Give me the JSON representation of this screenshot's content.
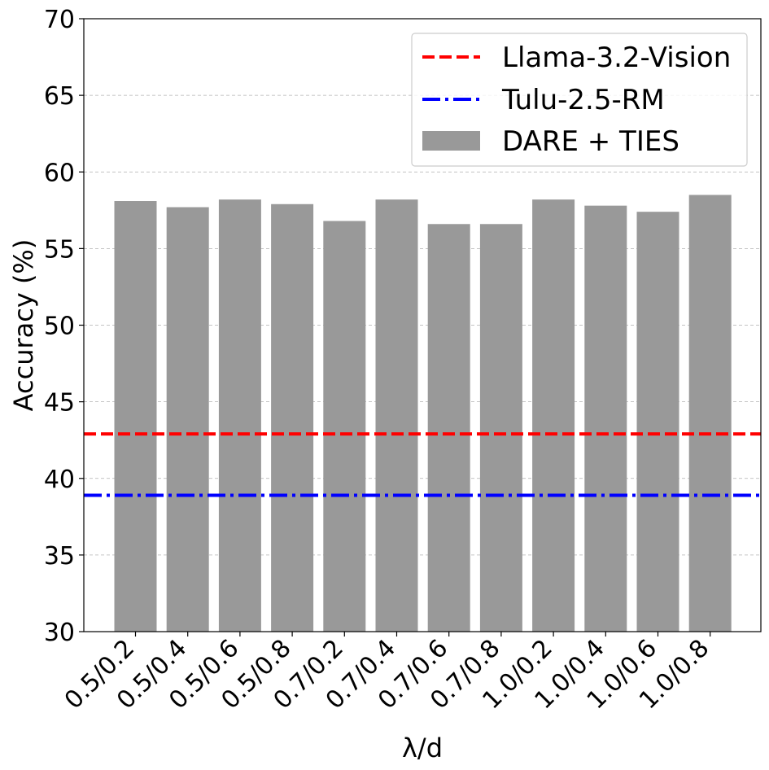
{
  "chart_data": {
    "type": "bar",
    "title": "",
    "xlabel": "λ/d",
    "ylabel": "Accuracy (%)",
    "ylim": [
      30,
      70
    ],
    "yticks": [
      30,
      35,
      40,
      45,
      50,
      55,
      60,
      65,
      70
    ],
    "grid": true,
    "legend_placement": "top-right",
    "categories": [
      "0.5/0.2",
      "0.5/0.4",
      "0.5/0.6",
      "0.5/0.8",
      "0.7/0.2",
      "0.7/0.4",
      "0.7/0.6",
      "0.7/0.8",
      "1.0/0.2",
      "1.0/0.4",
      "1.0/0.6",
      "1.0/0.8"
    ],
    "series": [
      {
        "name": "DARE + TIES",
        "kind": "bar",
        "color": "#999999",
        "values": [
          58.1,
          57.7,
          58.2,
          57.9,
          56.8,
          58.2,
          56.6,
          56.6,
          58.2,
          57.8,
          57.4,
          58.5
        ]
      }
    ],
    "reference_lines": [
      {
        "name": "Llama-3.2-Vision",
        "value": 42.9,
        "color": "#ff0000",
        "style": "dashed"
      },
      {
        "name": "Tulu-2.5-RM",
        "value": 38.9,
        "color": "#0000ff",
        "style": "dashdot"
      }
    ]
  }
}
